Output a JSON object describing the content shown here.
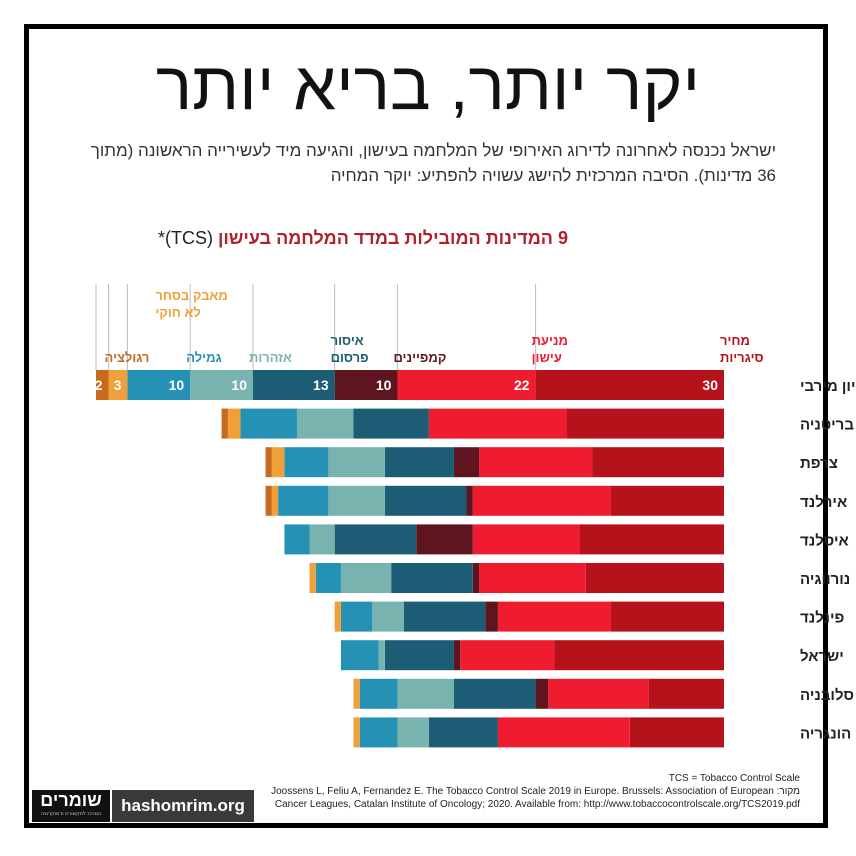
{
  "title": "יקר יותר, בריא יותר",
  "subtitle": "ישראל נכנסה לאחרונה לדירוג האירופי של המלחמה בעישון, והגיעה מיד לעשירייה הראשונה (מתוך 36 מדינות). הסיבה המרכזית להישג עשויה להפתיע: יוקר המחיה",
  "chart_title": "9 המדינות המובילות במדד המלחמה בעישון",
  "chart_title_suffix": "(TCS)*",
  "footnote": {
    "definition": "TCS = Tobacco Control Scale",
    "source_line1": "Joossens L, Feliu A, Fernandez E. The Tobacco Control Scale 2019 in Europe. Brussels: Association of European :מקור",
    "source_line2": "Cancer Leagues, Catalan Institute of Oncology; 2020. Available from: http://www.tobaccocontrolscale.org/TCS2019.pdf"
  },
  "logo": {
    "name": "שומרים",
    "tagline": "המרכז לתקשורת ודמוקרטיה"
  },
  "site": "hashomrim.org",
  "colors": {
    "price": "#b5121b",
    "smoking_ban": "#ee1c2e",
    "campaigns": "#5e1520",
    "ad_ban": "#1c5c74",
    "warnings": "#79b3b0",
    "cessation": "#2591b5",
    "illicit_trade": "#f0a03a",
    "regulation": "#c8691d"
  },
  "chart_data": {
    "type": "bar",
    "orientation": "horizontal-stacked",
    "categories_label": "",
    "categories": [
      "ציון מירבי",
      "בריטניה",
      "צרפת",
      "אירלנד",
      "איסלנד",
      "נורווגיה",
      "פינלנד",
      "ישראל",
      "סלובניה",
      "הונגריה"
    ],
    "series": [
      {
        "key": "price",
        "name": "מחיר סיגריות",
        "color": "#b5121b",
        "values": [
          30,
          25,
          21,
          18,
          23,
          22,
          18,
          27,
          12,
          15
        ]
      },
      {
        "key": "smoking_ban",
        "name": "מניעת עישון",
        "color": "#ee1c2e",
        "values": [
          22,
          22,
          18,
          22,
          17,
          17,
          18,
          15,
          16,
          21
        ]
      },
      {
        "key": "campaigns",
        "name": "קמפיינים",
        "color": "#5e1520",
        "values": [
          10,
          0,
          4,
          1,
          9,
          1,
          2,
          1,
          2,
          0
        ]
      },
      {
        "key": "ad_ban",
        "name": "איסור פרסום",
        "color": "#1c5c74",
        "values": [
          13,
          12,
          11,
          13,
          13,
          13,
          13,
          11,
          13,
          11
        ]
      },
      {
        "key": "warnings",
        "name": "אזהרות",
        "color": "#79b3b0",
        "values": [
          10,
          9,
          9,
          9,
          4,
          8,
          5,
          1,
          9,
          5
        ]
      },
      {
        "key": "cessation",
        "name": "גמילה",
        "color": "#2591b5",
        "values": [
          10,
          9,
          7,
          8,
          4,
          4,
          5,
          6,
          6,
          6
        ]
      },
      {
        "key": "illicit_trade",
        "name": "מאבק בסחר לא חוקי",
        "color": "#f0a03a",
        "values": [
          3,
          2,
          2,
          1,
          0,
          1,
          1,
          0,
          1,
          1
        ]
      },
      {
        "key": "regulation",
        "name": "רגולציה",
        "color": "#c8691d",
        "values": [
          2,
          1,
          1,
          1,
          0,
          0,
          0,
          0,
          0,
          0
        ]
      }
    ],
    "data_labels_row": 0,
    "xlim": [
      0,
      100
    ],
    "stack_direction": "right-to-left",
    "legend_position": "top, above columns",
    "grid": false
  }
}
